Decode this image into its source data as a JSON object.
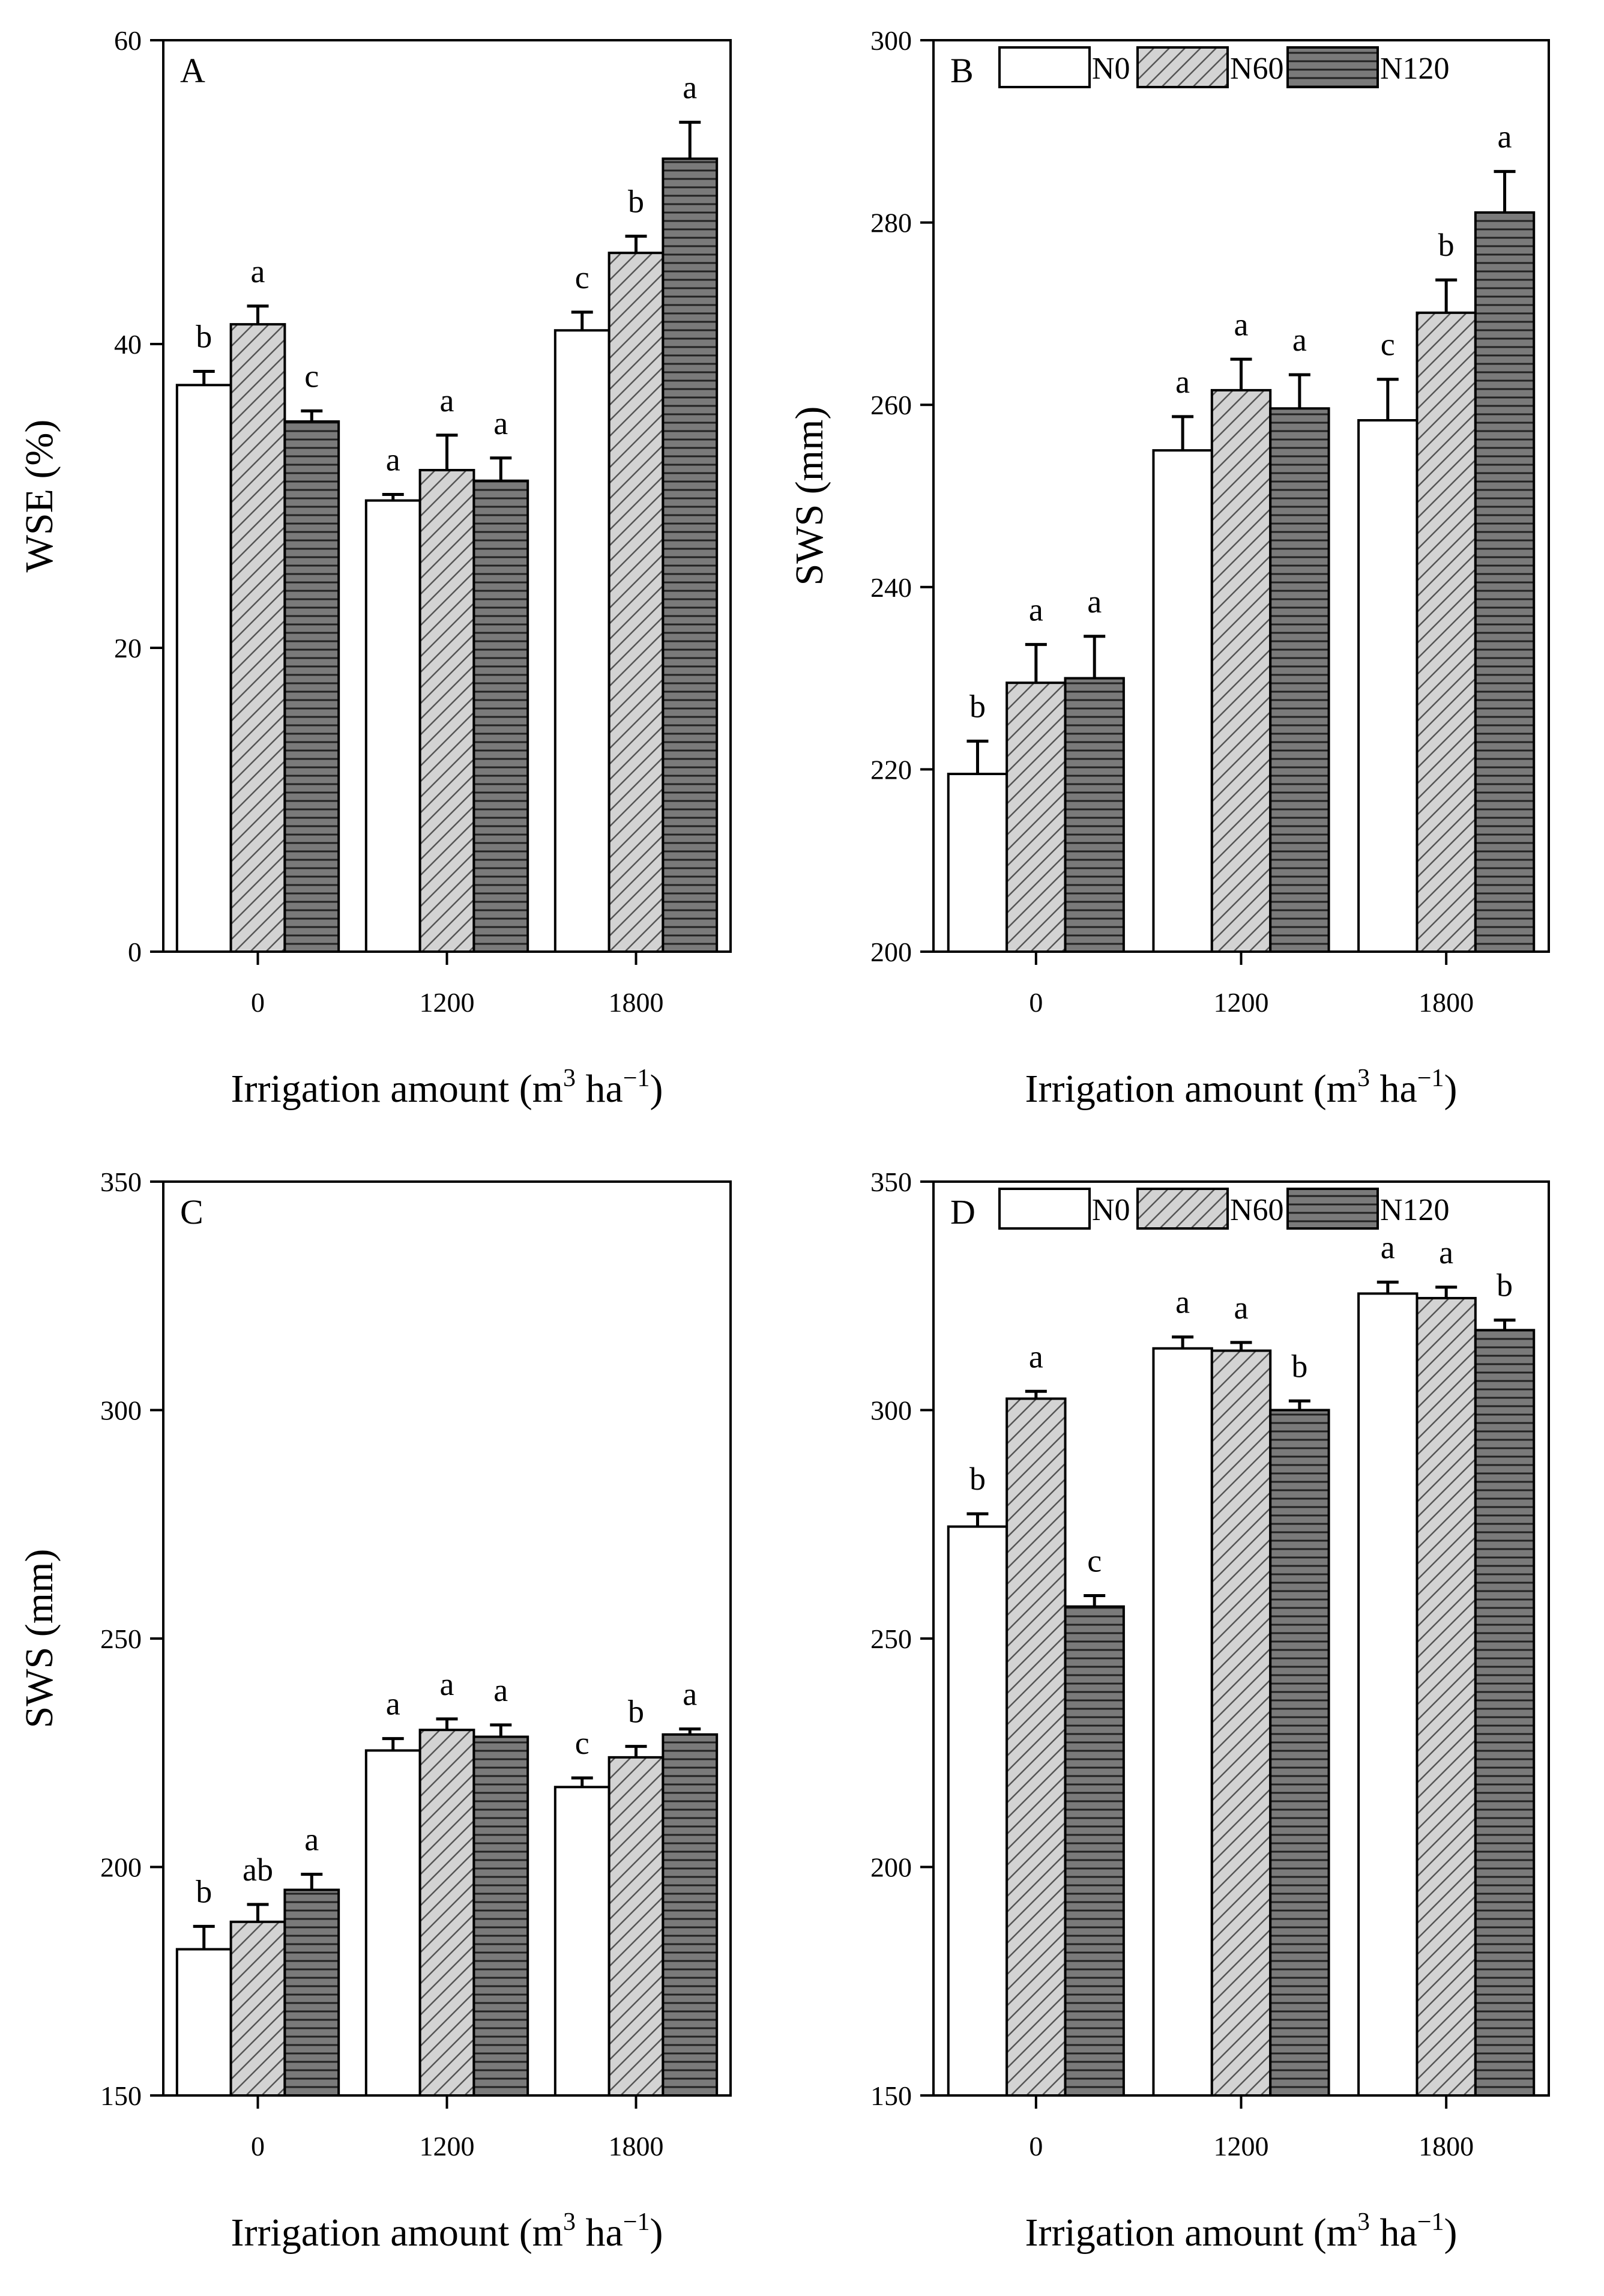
{
  "chart_data": [
    {
      "type": "bar",
      "panel": "A",
      "categories": [
        "0",
        "1200",
        "1800"
      ],
      "series": [
        {
          "name": "N0",
          "values": [
            37.3,
            29.7,
            40.9
          ],
          "errors": [
            0.9,
            0.4,
            1.2
          ],
          "letters": [
            "b",
            "a",
            "c"
          ]
        },
        {
          "name": "N60",
          "values": [
            41.3,
            31.7,
            46.0
          ],
          "errors": [
            1.2,
            2.3,
            1.1
          ],
          "letters": [
            "a",
            "a",
            "b"
          ]
        },
        {
          "name": "N120",
          "values": [
            34.9,
            31.0,
            52.2
          ],
          "errors": [
            0.7,
            1.5,
            2.4
          ],
          "letters": [
            "c",
            "a",
            "a"
          ]
        }
      ],
      "xlabel_main": "Irrigation amount (m",
      "xlabel_sup1": "3",
      "xlabel_mid": " ha",
      "xlabel_sup2": "−1",
      "xlabel_end": ")",
      "ylabel": "WSE (%)",
      "ylim": [
        0,
        60
      ],
      "yticks": [
        "0",
        "20",
        "40",
        "60"
      ],
      "legend": false
    },
    {
      "type": "bar",
      "panel": "B",
      "categories": [
        "0",
        "1200",
        "1800"
      ],
      "series": [
        {
          "name": "N0",
          "values": [
            219.5,
            255.0,
            258.3
          ],
          "errors": [
            3.6,
            3.7,
            4.5
          ],
          "letters": [
            "b",
            "a",
            "c"
          ]
        },
        {
          "name": "N60",
          "values": [
            229.5,
            261.6,
            270.1
          ],
          "errors": [
            4.2,
            3.4,
            3.6
          ],
          "letters": [
            "a",
            "a",
            "b"
          ]
        },
        {
          "name": "N120",
          "values": [
            230.0,
            259.6,
            281.1
          ],
          "errors": [
            4.6,
            3.7,
            4.5
          ],
          "letters": [
            "a",
            "a",
            "a"
          ]
        }
      ],
      "xlabel_main": "Irrigation amount (m",
      "xlabel_sup1": "3",
      "xlabel_mid": " ha",
      "xlabel_sup2": "−1",
      "xlabel_end": ")",
      "ylabel": "SWS (mm)",
      "ylim": [
        200,
        300
      ],
      "yticks": [
        "200",
        "220",
        "240",
        "260",
        "280",
        "300"
      ],
      "legend": true
    },
    {
      "type": "bar",
      "panel": "C",
      "categories": [
        "0",
        "1200",
        "1800"
      ],
      "series": [
        {
          "name": "N0",
          "values": [
            182.0,
            225.5,
            217.5
          ],
          "errors": [
            5.0,
            2.6,
            2.0
          ],
          "letters": [
            "b",
            "a",
            "c"
          ]
        },
        {
          "name": "N60",
          "values": [
            188.0,
            230.0,
            224.0
          ],
          "errors": [
            3.8,
            2.4,
            2.4
          ],
          "letters": [
            "ab",
            "a",
            "b"
          ]
        },
        {
          "name": "N120",
          "values": [
            195.0,
            228.5,
            229.0
          ],
          "errors": [
            3.4,
            2.6,
            1.2
          ],
          "letters": [
            "a",
            "a",
            "a"
          ]
        }
      ],
      "xlabel_main": "Irrigation amount (m",
      "xlabel_sup1": "3",
      "xlabel_mid": " ha",
      "xlabel_sup2": "−1",
      "xlabel_end": ")",
      "ylabel": "SWS (mm)",
      "ylim": [
        150,
        350
      ],
      "yticks": [
        "150",
        "200",
        "250",
        "300",
        "350"
      ],
      "legend": false
    },
    {
      "type": "bar",
      "panel": "D",
      "categories": [
        "0",
        "1200",
        "1800"
      ],
      "series": [
        {
          "name": "N0",
          "values": [
            274.5,
            313.5,
            325.5
          ],
          "errors": [
            2.8,
            2.5,
            2.5
          ],
          "letters": [
            "b",
            "a",
            "a"
          ]
        },
        {
          "name": "N60",
          "values": [
            302.5,
            313.0,
            324.5
          ],
          "errors": [
            1.6,
            1.8,
            2.4
          ],
          "letters": [
            "a",
            "a",
            "a"
          ]
        },
        {
          "name": "N120",
          "values": [
            257.0,
            300.0,
            317.5
          ],
          "errors": [
            2.4,
            2.0,
            2.2
          ],
          "letters": [
            "c",
            "b",
            "b"
          ]
        }
      ],
      "xlabel_main": "Irrigation amount (m",
      "xlabel_sup1": "3",
      "xlabel_mid": " ha",
      "xlabel_sup2": "−1",
      "xlabel_end": ")",
      "ylabel": "",
      "ylim": [
        150,
        350
      ],
      "yticks": [
        "150",
        "200",
        "250",
        "300",
        "350"
      ],
      "legend": true
    }
  ],
  "legend_labels": [
    "N0",
    "N60",
    "N120"
  ],
  "colors": {
    "N0": "#ffffff",
    "N60": "#d3d3d3",
    "N120": "#7a7a7a",
    "axis": "#000000"
  }
}
